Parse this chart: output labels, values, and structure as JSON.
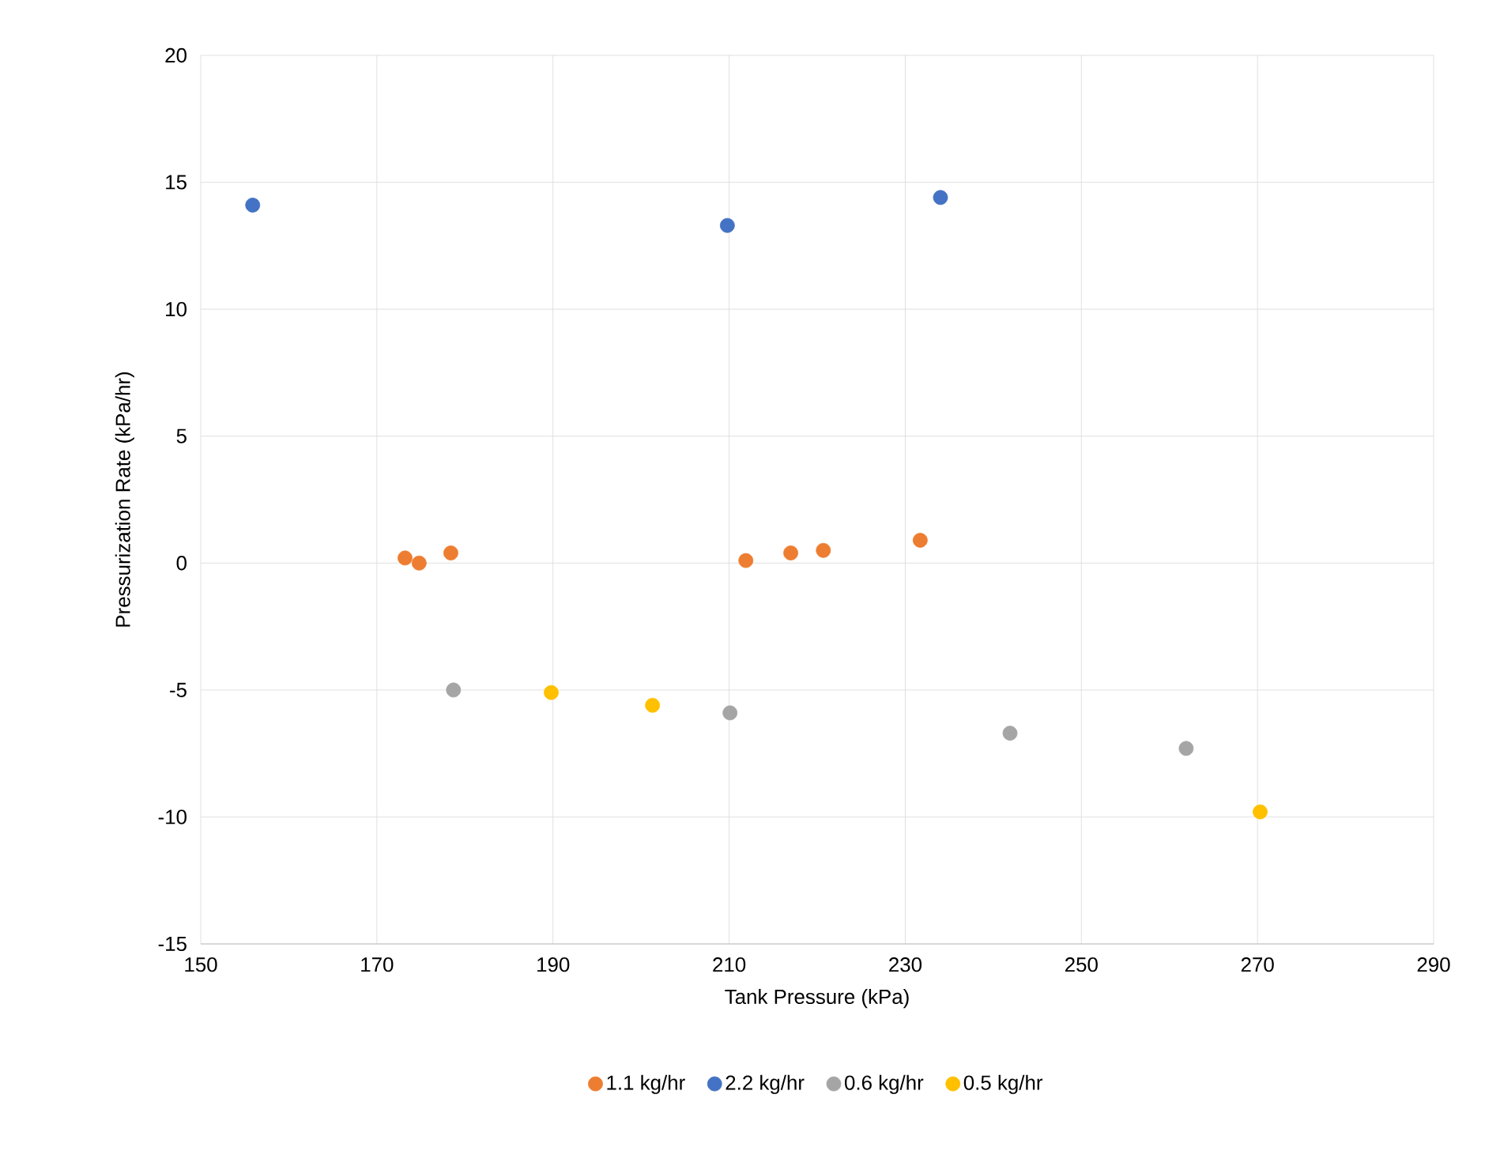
{
  "chart_data": {
    "type": "scatter",
    "xlabel": "Tank Pressure (kPa)",
    "ylabel": "Pressurization Rate (kPa/hr)",
    "xlim": [
      150,
      290
    ],
    "xticks": [
      150,
      170,
      190,
      210,
      230,
      250,
      270,
      290
    ],
    "ylim": [
      -15,
      20
    ],
    "yticks": [
      -15,
      -10,
      -5,
      0,
      5,
      10,
      15,
      20
    ],
    "grid": true,
    "legend": "bottom",
    "marker": "circle",
    "series": [
      {
        "name": "1.1 kg/hr",
        "color": "#ed7d31",
        "x": [
          173.2,
          174.8,
          178.4,
          211.9,
          217.0,
          220.7,
          231.7
        ],
        "values": [
          0.2,
          0.0,
          0.4,
          0.1,
          0.4,
          0.5,
          0.9
        ]
      },
      {
        "name": "2.2 kg/hr",
        "color": "#4472c4",
        "x": [
          155.9,
          209.8,
          234.0
        ],
        "values": [
          14.1,
          13.3,
          14.4
        ]
      },
      {
        "name": "0.6 kg/hr",
        "color": "#a5a5a5",
        "x": [
          178.7,
          210.1,
          241.9,
          261.9
        ],
        "values": [
          -5.0,
          -5.9,
          -6.7,
          -7.3
        ]
      },
      {
        "name": "0.5 kg/hr",
        "color": "#ffc000",
        "x": [
          189.8,
          201.3,
          270.3
        ],
        "values": [
          -5.1,
          -5.6,
          -9.8
        ]
      }
    ]
  }
}
